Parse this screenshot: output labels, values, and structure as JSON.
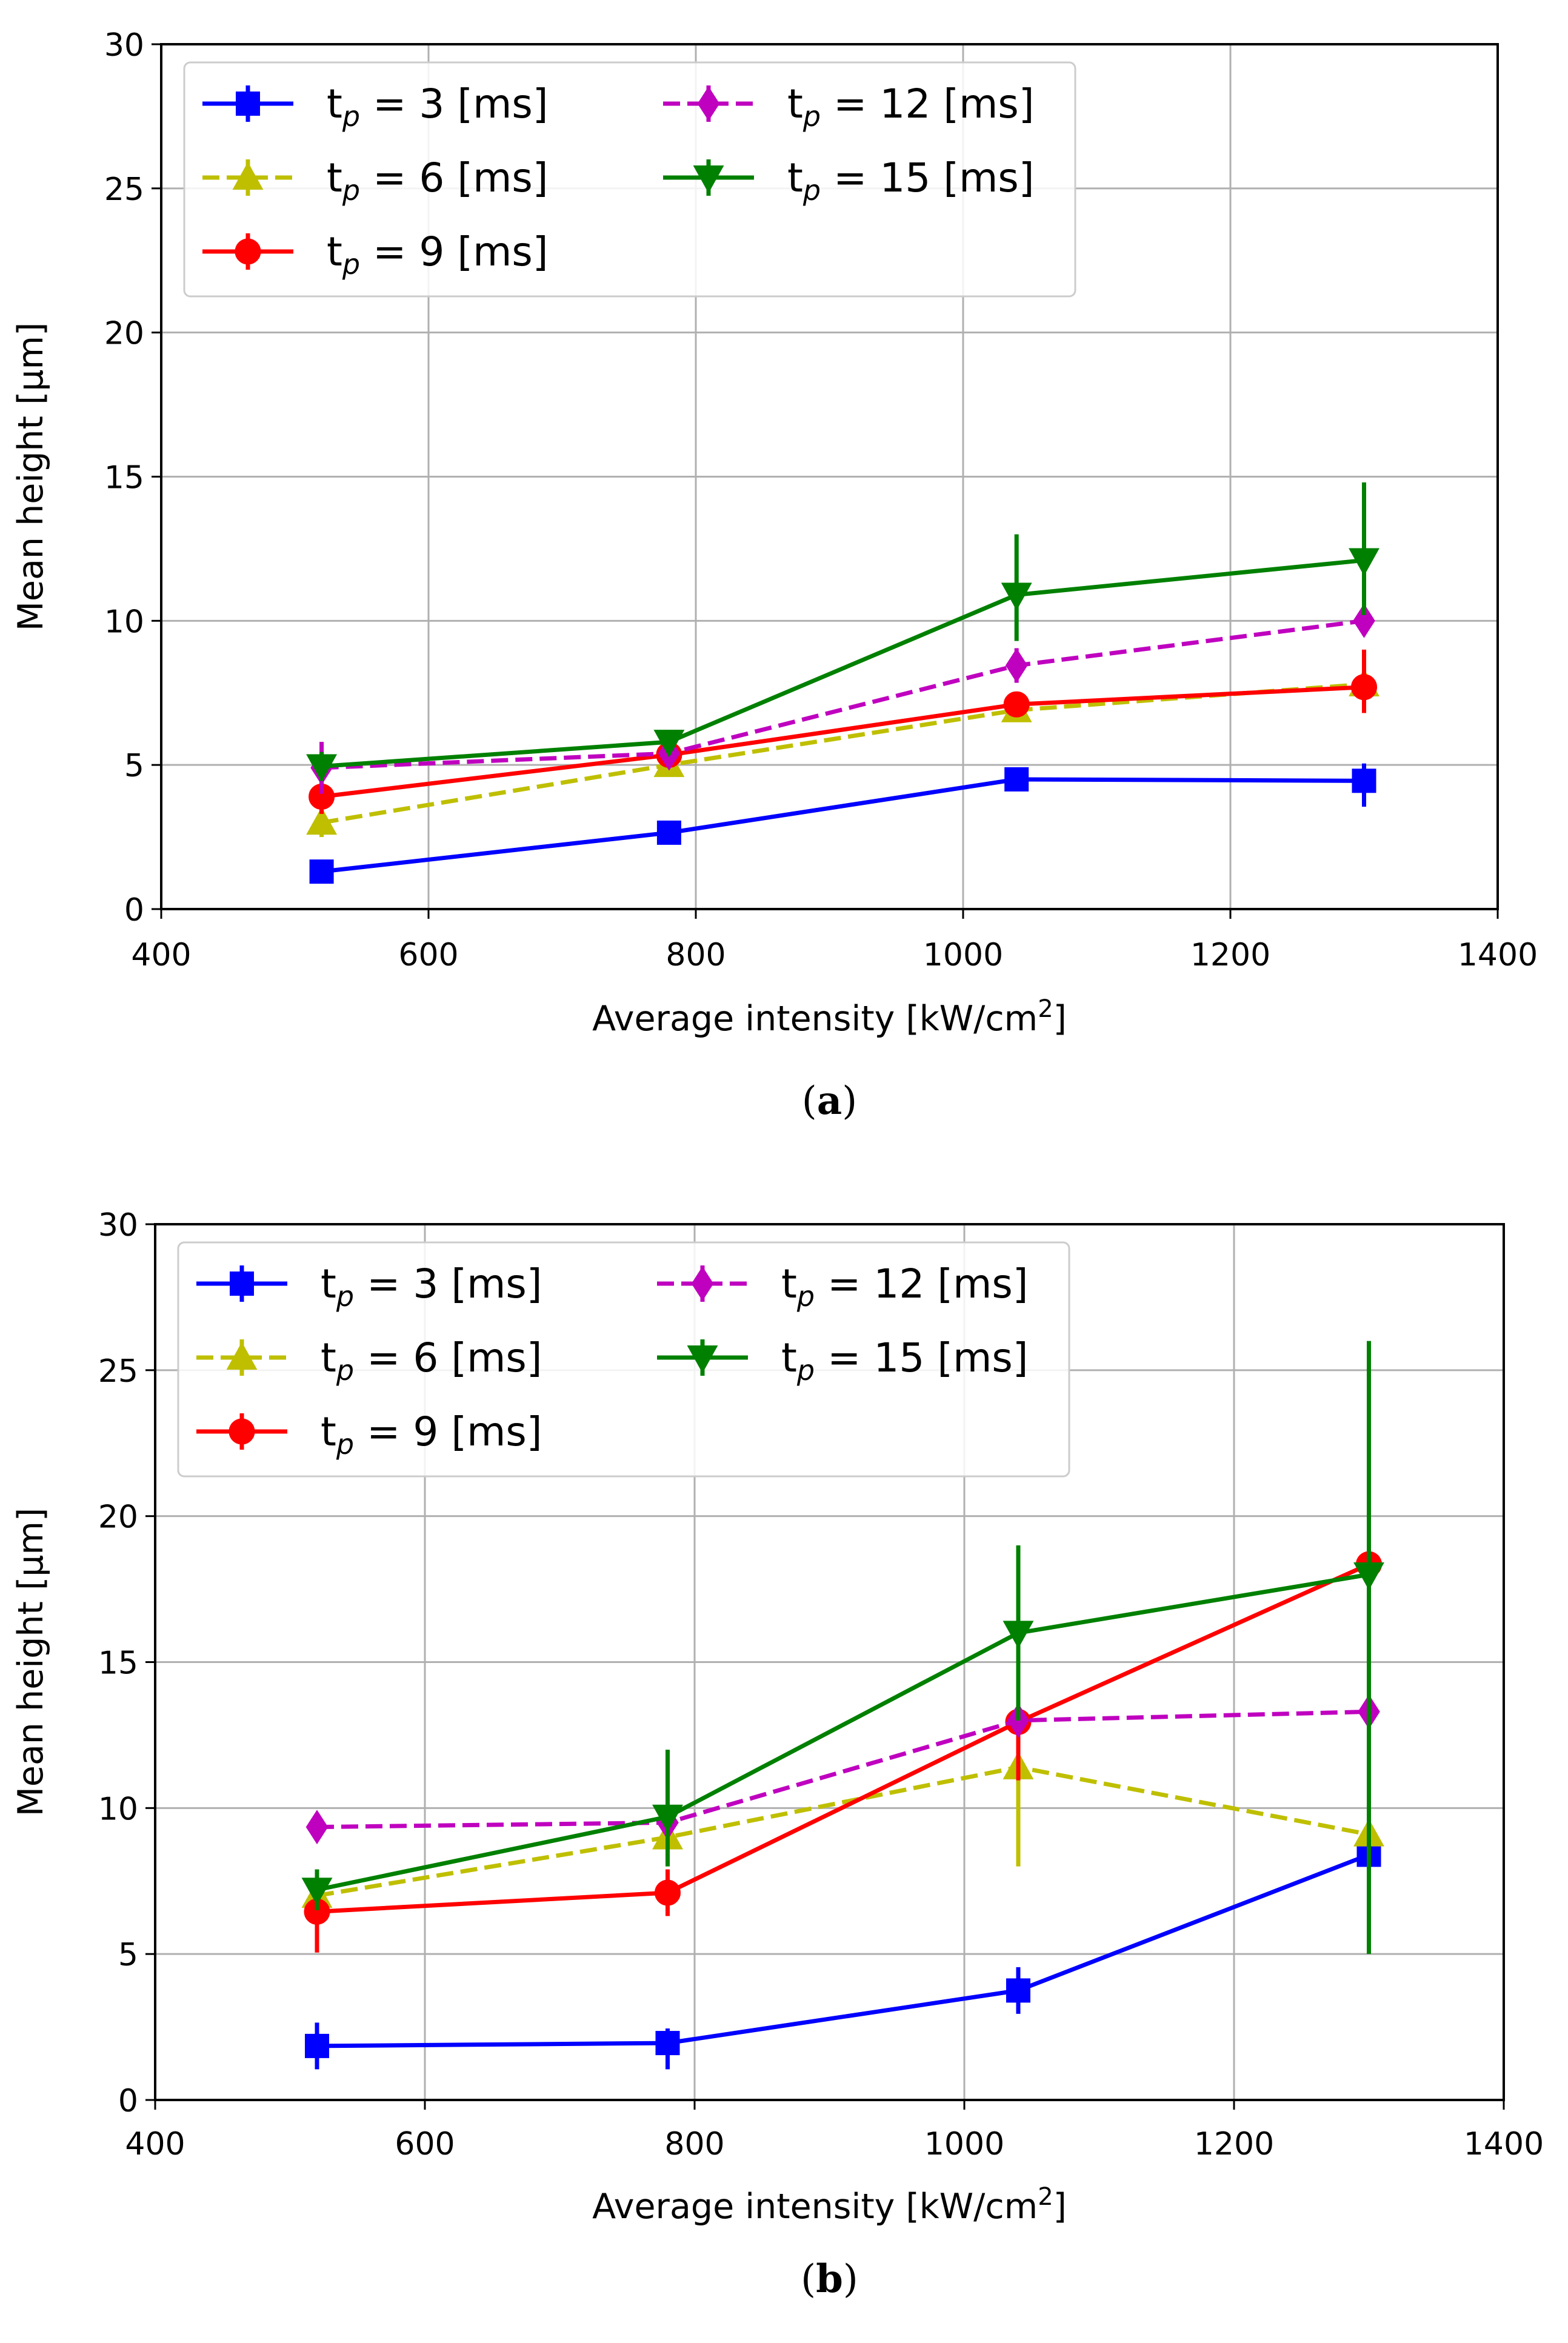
{
  "chart_data": [
    {
      "type": "line",
      "caption": "(a)",
      "caption_paren_open": "(",
      "caption_letter": "a",
      "caption_paren_close": ")",
      "xlabel": "Average intensity [kW/cm²]",
      "xlabel_main": "Average intensity [kW/cm",
      "xlabel_sup": "2",
      "xlabel_end": "]",
      "ylabel": "Mean height [μm]",
      "xlim": [
        400,
        1400
      ],
      "ylim": [
        0,
        30
      ],
      "xticks": [
        "400",
        "600",
        "800",
        "1000",
        "1200",
        "1400"
      ],
      "yticks": [
        "0",
        "5",
        "10",
        "15",
        "20",
        "25",
        "30"
      ],
      "grid": true,
      "legend_position": "upper-left",
      "x": [
        520,
        780,
        1040,
        1300
      ],
      "series": [
        {
          "name": "tp = 3 [ms]",
          "label_base": "t",
          "label_sub": "p",
          "label_rest": " = 3 [ms]",
          "color": "#0000ff",
          "dashed": false,
          "marker": "square",
          "values": [
            1.3,
            2.65,
            4.5,
            4.45
          ],
          "err_low": [
            0.3,
            0.3,
            0.3,
            0.9
          ],
          "err_high": [
            0.3,
            0.3,
            0.3,
            0.6
          ]
        },
        {
          "name": "tp = 6 [ms]",
          "label_base": "t",
          "label_sub": "p",
          "label_rest": " = 6 [ms]",
          "color": "#bfbf00",
          "dashed": true,
          "marker": "triangle-up",
          "values": [
            3.0,
            5.0,
            6.9,
            7.8
          ],
          "err_low": [
            0.5,
            0.4,
            0.4,
            0.5
          ],
          "err_high": [
            0.5,
            0.4,
            0.4,
            0.5
          ]
        },
        {
          "name": "tp = 9 [ms]",
          "label_base": "t",
          "label_sub": "p",
          "label_rest": " = 9 [ms]",
          "color": "#ff0000",
          "dashed": false,
          "marker": "circle",
          "values": [
            3.9,
            5.35,
            7.1,
            7.7
          ],
          "err_low": [
            0.6,
            0.4,
            0.4,
            0.9
          ],
          "err_high": [
            0.6,
            0.4,
            0.4,
            1.3
          ]
        },
        {
          "name": "tp = 12 [ms]",
          "label_base": "t",
          "label_sub": "p",
          "label_rest": " = 12 [ms]",
          "color": "#bf00bf",
          "dashed": true,
          "marker": "diamond",
          "values": [
            4.9,
            5.4,
            8.45,
            10.0
          ],
          "err_low": [
            0.9,
            0.4,
            0.6,
            0.5
          ],
          "err_high": [
            0.9,
            0.4,
            0.6,
            0.5
          ]
        },
        {
          "name": "tp = 15 [ms]",
          "label_base": "t",
          "label_sub": "p",
          "label_rest": " = 15 [ms]",
          "color": "#008000",
          "dashed": false,
          "marker": "triangle-down",
          "values": [
            4.95,
            5.8,
            10.9,
            12.1
          ],
          "err_low": [
            0.5,
            0.3,
            1.6,
            1.9
          ],
          "err_high": [
            0.5,
            0.3,
            2.1,
            2.7
          ]
        }
      ]
    },
    {
      "type": "line",
      "caption": "(b)",
      "caption_paren_open": "(",
      "caption_letter": "b",
      "caption_paren_close": ")",
      "xlabel": "Average intensity [kW/cm²]",
      "xlabel_main": "Average intensity [kW/cm",
      "xlabel_sup": "2",
      "xlabel_end": "]",
      "ylabel": "Mean height [μm]",
      "xlim": [
        400,
        1400
      ],
      "ylim": [
        0,
        30
      ],
      "xticks": [
        "400",
        "600",
        "800",
        "1000",
        "1200",
        "1400"
      ],
      "yticks": [
        "0",
        "5",
        "10",
        "15",
        "20",
        "25",
        "30"
      ],
      "grid": true,
      "legend_position": "upper-left",
      "x": [
        520,
        780,
        1040,
        1300
      ],
      "series": [
        {
          "name": "tp = 3 [ms]",
          "label_base": "t",
          "label_sub": "p",
          "label_rest": " = 3 [ms]",
          "color": "#0000ff",
          "dashed": false,
          "marker": "square",
          "values": [
            1.85,
            1.95,
            3.75,
            8.4
          ],
          "err_low": [
            0.8,
            0.9,
            0.8,
            0.6
          ],
          "err_high": [
            0.8,
            0.5,
            0.8,
            0.6
          ]
        },
        {
          "name": "tp = 6 [ms]",
          "label_base": "t",
          "label_sub": "p",
          "label_rest": " = 6 [ms]",
          "color": "#bfbf00",
          "dashed": true,
          "marker": "triangle-up",
          "values": [
            7.0,
            9.0,
            11.4,
            9.1
          ],
          "err_low": [
            0.6,
            0.6,
            3.4,
            0.6
          ],
          "err_high": [
            0.6,
            0.6,
            1.2,
            0.6
          ]
        },
        {
          "name": "tp = 9 [ms]",
          "label_base": "t",
          "label_sub": "p",
          "label_rest": " = 9 [ms]",
          "color": "#ff0000",
          "dashed": false,
          "marker": "circle",
          "values": [
            6.45,
            7.1,
            12.95,
            18.35
          ],
          "err_low": [
            1.4,
            0.8,
            2.0,
            0.4
          ],
          "err_high": [
            1.0,
            0.8,
            1.0,
            0.4
          ]
        },
        {
          "name": "tp = 12 [ms]",
          "label_base": "t",
          "label_sub": "p",
          "label_rest": " = 12 [ms]",
          "color": "#bf00bf",
          "dashed": true,
          "marker": "diamond",
          "values": [
            9.35,
            9.5,
            13.0,
            13.3
          ],
          "err_low": [
            0.3,
            0.4,
            0.5,
            0.4
          ],
          "err_high": [
            0.3,
            0.4,
            0.5,
            0.4
          ]
        },
        {
          "name": "tp = 15 [ms]",
          "label_base": "t",
          "label_sub": "p",
          "label_rest": " = 15 [ms]",
          "color": "#008000",
          "dashed": false,
          "marker": "triangle-down",
          "values": [
            7.2,
            9.7,
            16.0,
            18.0
          ],
          "err_low": [
            0.7,
            1.7,
            3.0,
            13.0
          ],
          "err_high": [
            0.7,
            2.3,
            3.0,
            8.0
          ]
        }
      ]
    }
  ]
}
